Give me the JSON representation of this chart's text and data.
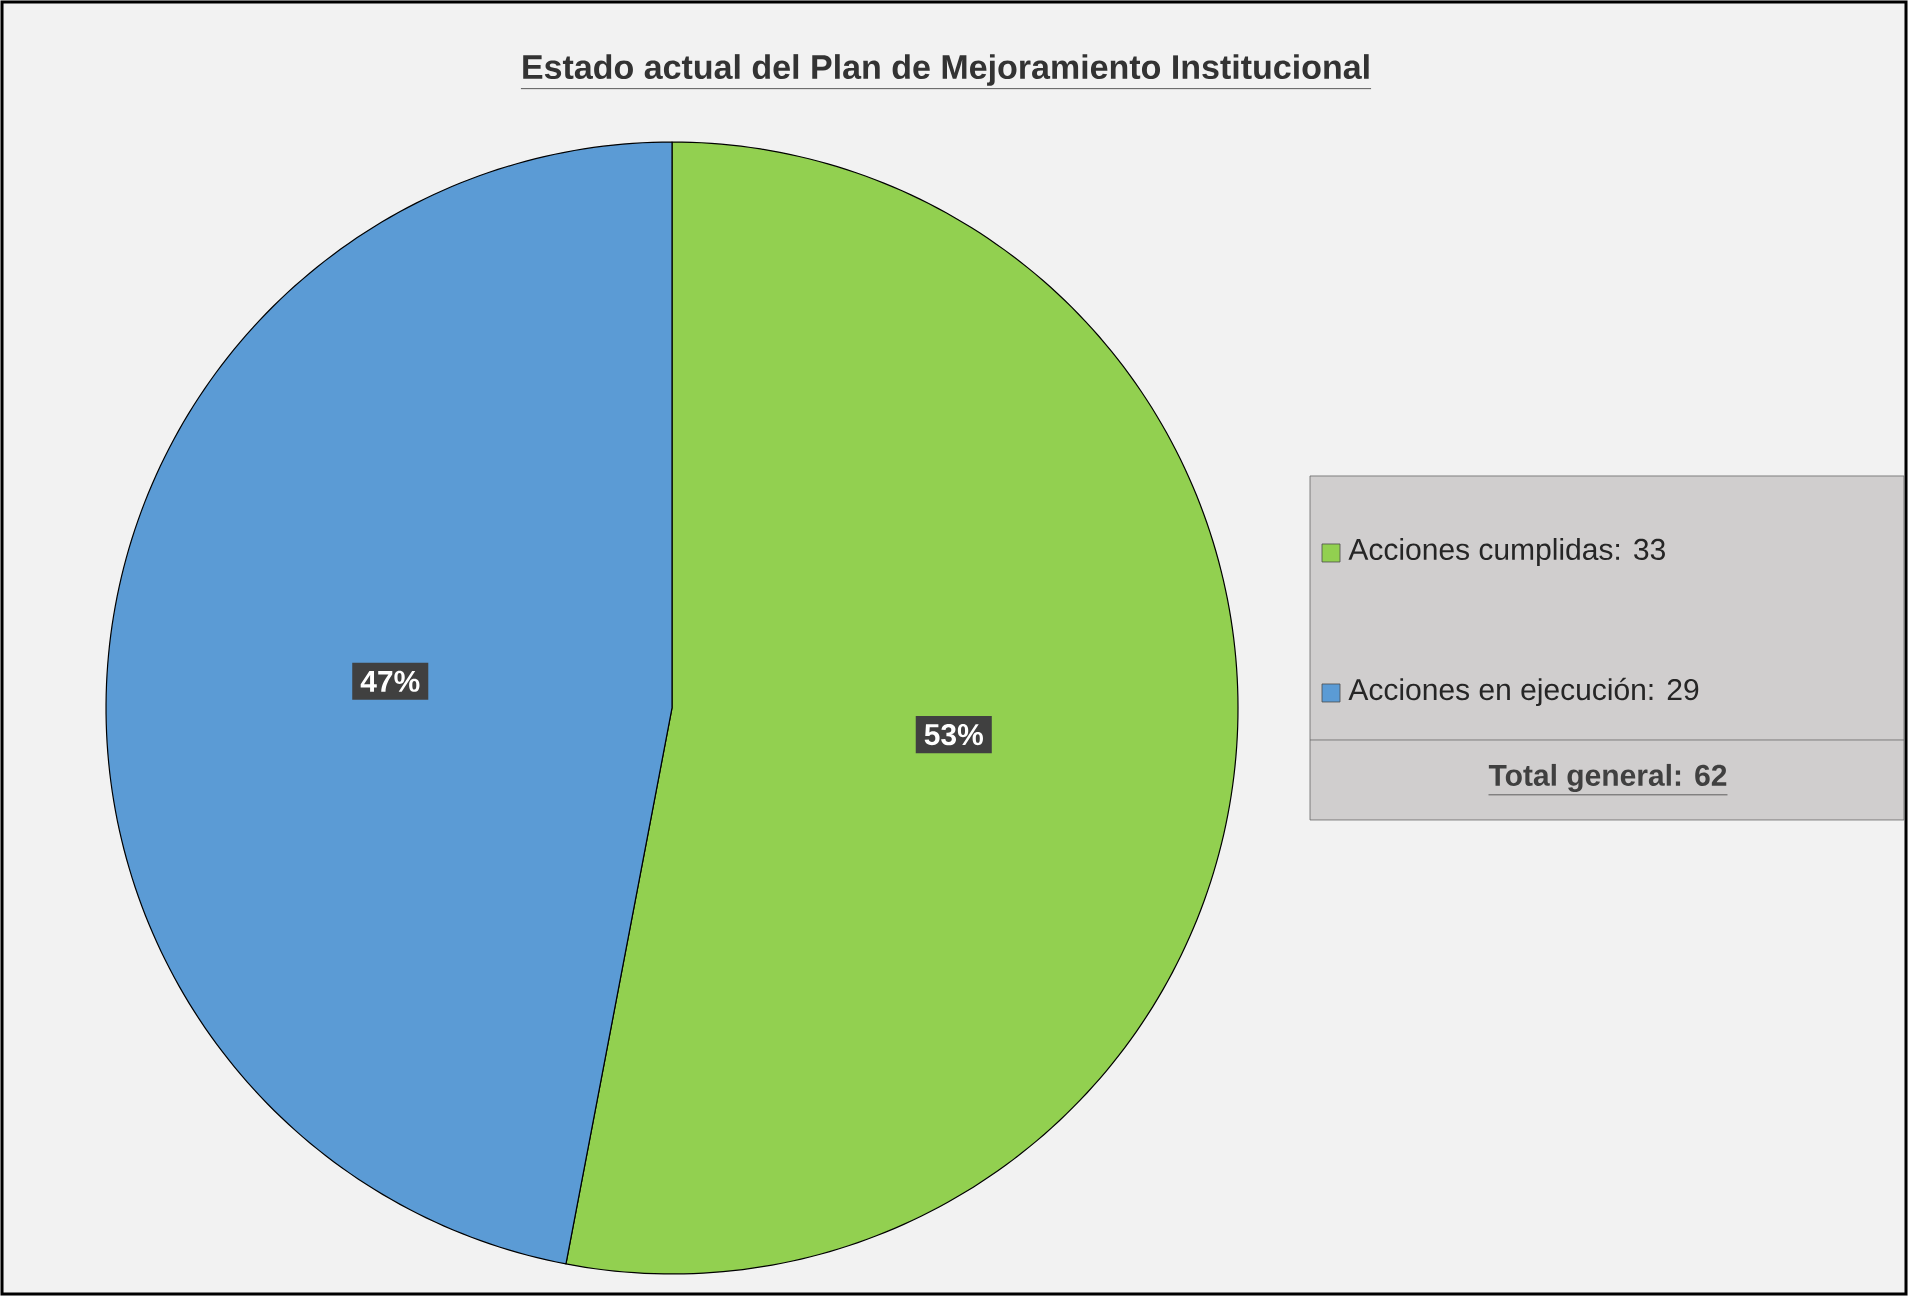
{
  "chart_data": {
    "type": "pie",
    "title": "Estado actual del Plan de Mejoramiento Institucional",
    "categories": [
      "Acciones cumplidas: 33",
      "Acciones en ejecución: 29"
    ],
    "values": [
      53,
      47
    ],
    "colors": [
      "#92d050",
      "#5b9bd5"
    ],
    "value_labels": [
      "53%",
      "47%"
    ],
    "legend": "right",
    "annotations": [
      "**Total general: 62**"
    ]
  }
}
